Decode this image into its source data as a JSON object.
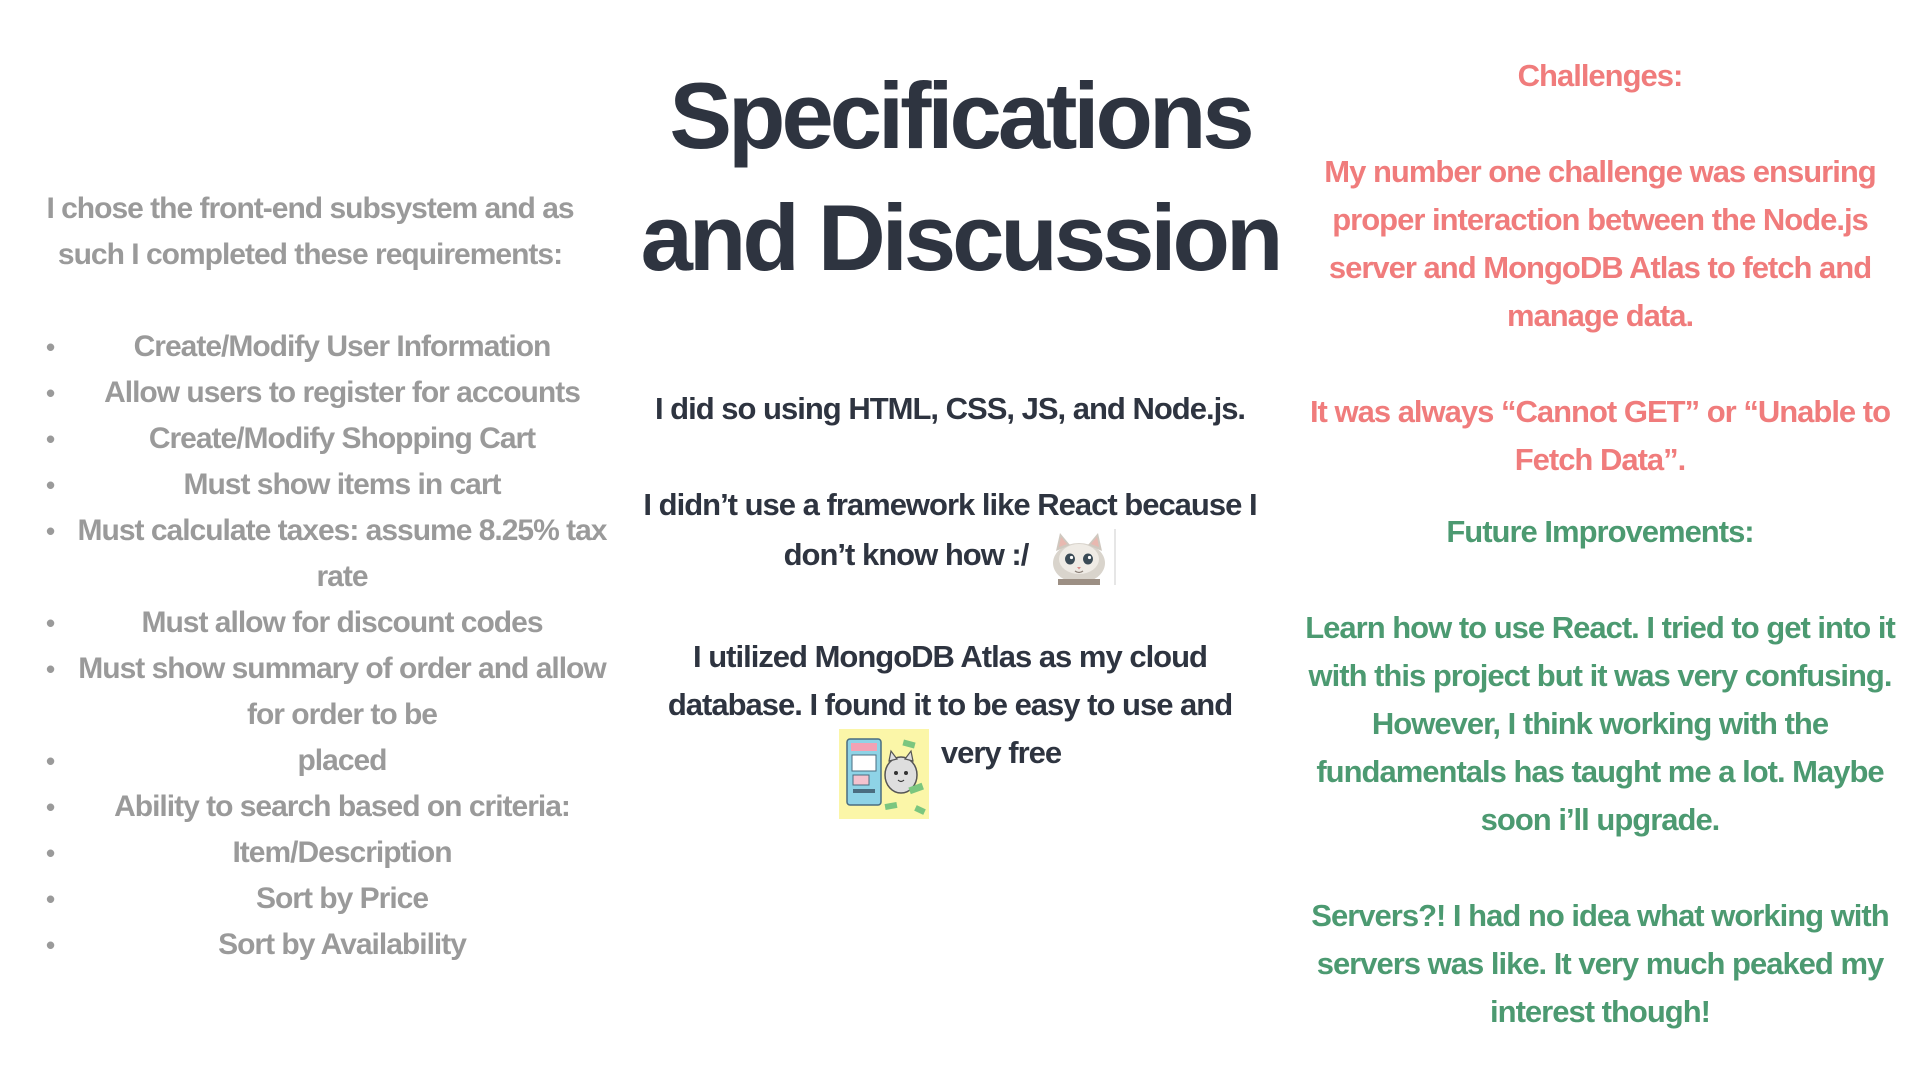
{
  "title": {
    "line1": "Specifications",
    "line2": "and Discussion"
  },
  "left": {
    "intro": "I chose the front-end subsystem and as such I completed these requirements:",
    "items": [
      "Create/Modify User Information",
      "Allow users to register for accounts",
      "Create/Modify Shopping Cart",
      "Must show items in cart",
      "Must calculate taxes: assume 8.25% tax rate",
      "Must allow for discount codes",
      "Must show summary of order and allow for order to be",
      "placed",
      "Ability to search based on criteria:",
      "Item/Description",
      "Sort by Price",
      "Sort by Availability"
    ],
    "bullet_glyph": "•"
  },
  "middle": {
    "p1": "I did so using HTML, CSS, JS, and Node.js.",
    "p2_line1": "I didn’t use a framework like React because I",
    "p2_line2": "don’t know how :/",
    "p3_line1": "I utilized MongoDB Atlas as my cloud",
    "p3_line2": "database. I found it to be easy to use and",
    "p3_line3": "very free"
  },
  "right": {
    "challenges_heading": "Challenges:",
    "challenge1": "My number one challenge was ensuring proper interaction between the Node.js server and MongoDB Atlas to fetch and manage data.",
    "challenge2": "It was always “Cannot GET” or “Unable to Fetch Data”.",
    "future_heading": "Future Improvements:",
    "future1": "Learn how to use React. I tried to get into it with this project but it was very confusing. However, I think working with the fundamentals has taught me a lot. Maybe soon i’ll upgrade.",
    "future2": "Servers?! I had no idea what working with servers was like. It very much peaked my interest though!"
  },
  "colors": {
    "title": "#2e3440",
    "left_text": "#9a9a9a",
    "challenges": "#f07c7c",
    "future": "#4c9a71"
  },
  "icons": {
    "kitten": "kitten-sticker-icon",
    "atm": "atm-cat-sticker-icon"
  }
}
